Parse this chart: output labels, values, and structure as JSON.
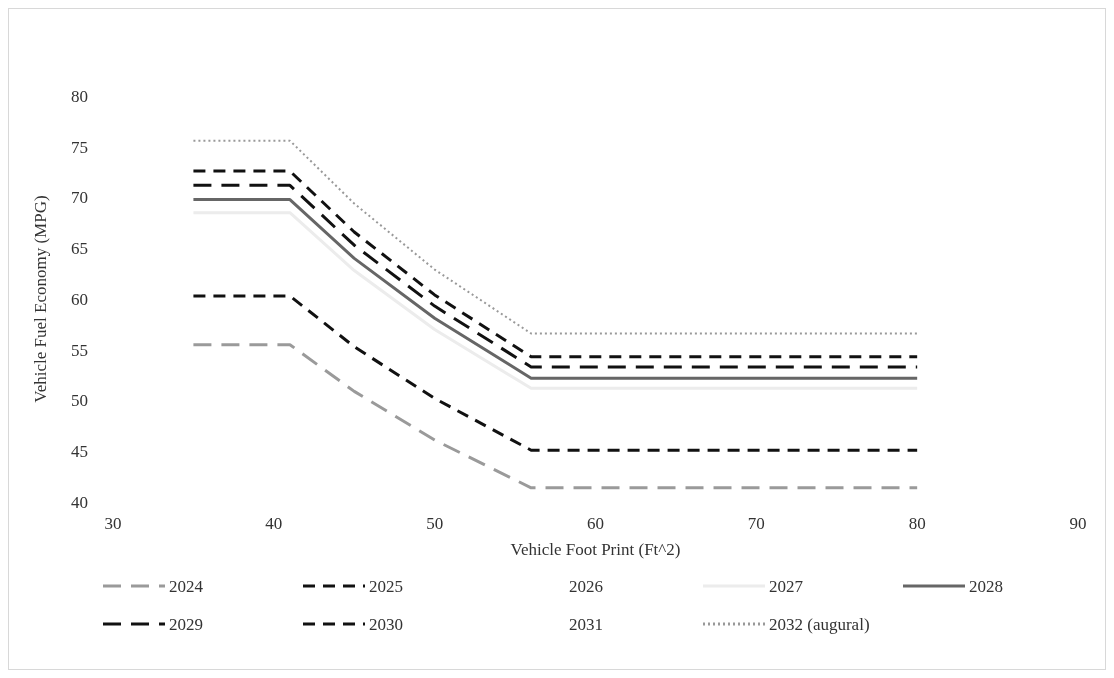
{
  "chart_data": {
    "type": "line",
    "xlabel": "Vehicle Foot Print (Ft^2)",
    "ylabel": "Vehicle Fuel Economy (MPG)",
    "x": [
      35,
      41,
      45,
      50,
      56,
      80
    ],
    "xlim": [
      30,
      90
    ],
    "xticks": [
      30,
      40,
      50,
      60,
      70,
      80,
      90
    ],
    "ylim": [
      40,
      80
    ],
    "yticks": [
      40,
      45,
      50,
      55,
      60,
      65,
      70,
      75,
      80
    ],
    "grid": false,
    "legend": "bottom",
    "marker": "none",
    "series": [
      {
        "name": "2024",
        "color": "#9a9a9a",
        "line_style": "dashed",
        "values": [
          55.5,
          55.5,
          50.9,
          46.1,
          41.4,
          41.4
        ]
      },
      {
        "name": "2025",
        "color": "#111111",
        "line_style": "dashed",
        "values": [
          60.3,
          60.3,
          55.3,
          50.2,
          45.1,
          45.1
        ]
      },
      {
        "name": "2026",
        "line_style": "solid",
        "values": [
          null,
          null,
          null,
          null,
          null,
          null
        ]
      },
      {
        "name": "2027",
        "color": "#ececec",
        "line_style": "solid",
        "values": [
          68.5,
          68.5,
          62.8,
          57.0,
          51.2,
          51.2
        ]
      },
      {
        "name": "2028",
        "color": "#666666",
        "line_style": "solid",
        "values": [
          69.8,
          69.8,
          64.0,
          58.1,
          52.2,
          52.2
        ]
      },
      {
        "name": "2029",
        "color": "#111111",
        "line_style": "dashed",
        "values": [
          71.2,
          71.2,
          65.3,
          59.3,
          53.3,
          53.3
        ]
      },
      {
        "name": "2030",
        "color": "#111111",
        "line_style": "dashed",
        "values": [
          72.6,
          72.6,
          66.6,
          60.4,
          54.3,
          54.3
        ]
      },
      {
        "name": "2031",
        "line_style": "solid",
        "values": [
          null,
          null,
          null,
          null,
          null,
          null
        ]
      },
      {
        "name": "2032 (augural)",
        "color": "#999999",
        "line_style": "dotted",
        "values": [
          75.6,
          75.6,
          69.4,
          62.9,
          56.6,
          56.6
        ]
      }
    ]
  }
}
